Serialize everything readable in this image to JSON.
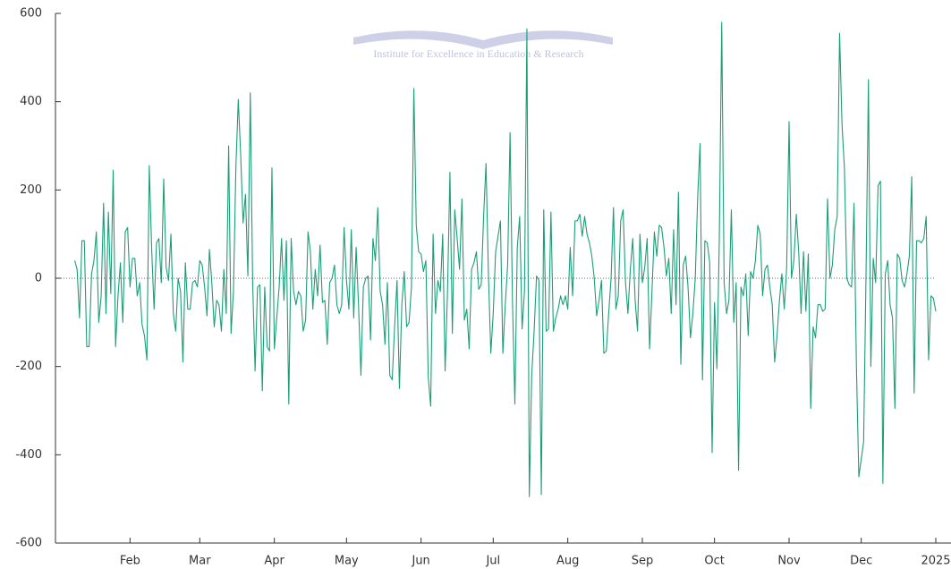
{
  "chart_data": {
    "type": "line",
    "watermark": "Institute for Excellence in Education & Research",
    "xlim": [
      0,
      366
    ],
    "xticks": [
      {
        "value": 31,
        "label": "Feb"
      },
      {
        "value": 60,
        "label": "Mar"
      },
      {
        "value": 91,
        "label": "Apr"
      },
      {
        "value": 121,
        "label": "May"
      },
      {
        "value": 152,
        "label": "Jun"
      },
      {
        "value": 182,
        "label": "Jul"
      },
      {
        "value": 213,
        "label": "Aug"
      },
      {
        "value": 244,
        "label": "Sep"
      },
      {
        "value": 274,
        "label": "Oct"
      },
      {
        "value": 305,
        "label": "Nov"
      },
      {
        "value": 335,
        "label": "Dec"
      },
      {
        "value": 366,
        "label": "2025"
      }
    ],
    "ylim": [
      -600,
      600
    ],
    "yticks": [
      -600,
      -400,
      -200,
      0,
      200,
      400,
      600
    ],
    "zeroline": true,
    "grid": false,
    "series": [
      {
        "name": null,
        "color": "#1b9e77",
        "x": [
          8,
          9,
          10,
          11,
          12,
          13,
          14,
          15,
          16,
          17,
          18,
          19,
          20,
          21,
          22,
          23,
          24,
          25,
          26,
          27,
          28,
          29,
          30,
          31,
          32,
          33,
          34,
          35,
          36,
          37,
          38,
          39,
          40,
          41,
          42,
          43,
          44,
          45,
          46,
          47,
          48,
          49,
          50,
          51,
          52,
          53,
          54,
          55,
          56,
          57,
          58,
          59,
          60,
          61,
          62,
          63,
          64,
          65,
          66,
          67,
          68,
          69,
          70,
          71,
          72,
          73,
          74,
          75,
          76,
          77,
          78,
          79,
          80,
          81,
          82,
          83,
          84,
          85,
          86,
          87,
          88,
          89,
          90,
          91,
          92,
          93,
          94,
          95,
          96,
          97,
          98,
          99,
          100,
          101,
          102,
          103,
          104,
          105,
          106,
          107,
          108,
          109,
          110,
          111,
          112,
          113,
          114,
          115,
          116,
          117,
          118,
          119,
          120,
          121,
          122,
          123,
          124,
          125,
          126,
          127,
          128,
          129,
          130,
          131,
          132,
          133,
          134,
          135,
          136,
          137,
          138,
          139,
          140,
          141,
          142,
          143,
          144,
          145,
          146,
          147,
          148,
          149,
          150,
          151,
          152,
          153,
          154,
          155,
          156,
          157,
          158,
          159,
          160,
          161,
          162,
          163,
          164,
          165,
          166,
          167,
          168,
          169,
          170,
          171,
          172,
          173,
          174,
          175,
          176,
          177,
          178,
          179,
          180,
          181,
          182,
          183,
          184,
          185,
          186,
          187,
          188,
          189,
          190,
          191,
          192,
          193,
          194,
          195,
          196,
          197,
          198,
          199,
          200,
          201,
          202,
          203,
          204,
          205,
          206,
          207,
          208,
          209,
          210,
          211,
          212,
          213,
          214,
          215,
          216,
          217,
          218,
          219,
          220,
          221,
          222,
          223,
          224,
          225,
          226,
          227,
          228,
          229,
          230,
          231,
          232,
          233,
          234,
          235,
          236,
          237,
          238,
          239,
          240,
          241,
          242,
          243,
          244,
          245,
          246,
          247,
          248,
          249,
          250,
          251,
          252,
          253,
          254,
          255,
          256,
          257,
          258,
          259,
          260,
          261,
          262,
          263,
          264,
          265,
          266,
          267,
          268,
          269,
          270,
          271,
          272,
          273,
          274,
          275,
          276,
          277,
          278,
          279,
          280,
          281,
          282,
          283,
          284,
          285,
          286,
          287,
          288,
          289,
          290,
          291,
          292,
          293,
          294,
          295,
          296,
          297,
          298,
          299,
          300,
          301,
          302,
          303,
          304,
          305,
          306,
          307,
          308,
          309,
          310,
          311,
          312,
          313,
          314,
          315,
          316,
          317,
          318,
          319,
          320,
          321,
          322,
          323,
          324,
          325,
          326,
          327,
          328,
          329,
          330,
          331,
          332,
          333,
          334,
          335,
          336,
          337,
          338,
          339,
          340,
          341,
          342,
          343,
          344,
          345,
          346,
          347,
          348,
          349,
          350,
          351,
          352,
          353,
          354,
          355,
          356,
          357,
          358,
          359,
          360,
          361,
          362,
          363,
          364,
          365,
          366
        ],
        "values": [
          40,
          20,
          -90,
          85,
          85,
          -155,
          -155,
          10,
          40,
          105,
          -100,
          -40,
          170,
          -80,
          150,
          -35,
          245,
          -155,
          -40,
          35,
          -100,
          105,
          115,
          -20,
          45,
          45,
          -40,
          -10,
          -105,
          -130,
          -185,
          255,
          65,
          -70,
          80,
          90,
          -10,
          225,
          25,
          -5,
          100,
          -80,
          -120,
          0,
          -30,
          -190,
          35,
          -70,
          -70,
          -10,
          -5,
          -20,
          40,
          30,
          -20,
          -85,
          65,
          -10,
          -110,
          -50,
          -60,
          -120,
          20,
          -80,
          300,
          -125,
          -30,
          250,
          405,
          280,
          125,
          190,
          5,
          420,
          -15,
          -210,
          -20,
          -15,
          -255,
          -20,
          -155,
          -165,
          250,
          -160,
          -90,
          -20,
          90,
          -50,
          85,
          -285,
          90,
          -30,
          -60,
          -30,
          -40,
          -120,
          -95,
          105,
          60,
          -70,
          20,
          -40,
          75,
          -55,
          -50,
          -150,
          -10,
          0,
          30,
          -60,
          -80,
          -60,
          115,
          -5,
          -70,
          110,
          -90,
          70,
          -60,
          -220,
          -20,
          0,
          5,
          -140,
          90,
          40,
          160,
          -30,
          -60,
          -150,
          -10,
          -220,
          -230,
          -110,
          -5,
          -250,
          -60,
          15,
          -110,
          -100,
          -20,
          430,
          120,
          60,
          55,
          15,
          40,
          -225,
          -290,
          100,
          -80,
          -5,
          -30,
          100,
          -210,
          -30,
          240,
          -125,
          155,
          90,
          20,
          180,
          -95,
          -70,
          -160,
          20,
          35,
          60,
          -25,
          -15,
          140,
          260,
          10,
          -170,
          -80,
          60,
          95,
          130,
          -170,
          -60,
          30,
          330,
          -50,
          -285,
          70,
          140,
          -115,
          -30,
          565,
          -495,
          -220,
          -120,
          5,
          -5,
          -490,
          155,
          -120,
          -115,
          150,
          -120,
          -90,
          -70,
          -40,
          -60,
          -40,
          -70,
          70,
          -40,
          130,
          130,
          145,
          95,
          140,
          100,
          80,
          50,
          0,
          -85,
          -50,
          -5,
          -170,
          -165,
          -80,
          0,
          160,
          -70,
          -40,
          130,
          155,
          -10,
          -80,
          20,
          90,
          -50,
          -120,
          100,
          -10,
          25,
          90,
          -160,
          -30,
          105,
          50,
          120,
          115,
          70,
          5,
          45,
          -80,
          110,
          -60,
          195,
          -195,
          30,
          50,
          -20,
          -135,
          -80,
          0,
          185,
          305,
          -230,
          85,
          80,
          35,
          -395,
          -55,
          -205,
          90,
          580,
          -10,
          -80,
          -50,
          155,
          -100,
          -10,
          -435,
          -20,
          -40,
          10,
          -130,
          15,
          0,
          40,
          120,
          100,
          -40,
          20,
          30,
          -20,
          -60,
          -190,
          -130,
          -50,
          10,
          -70,
          25,
          355,
          0,
          40,
          145,
          60,
          -80,
          60,
          -75,
          55,
          -295,
          -110,
          -135,
          -60,
          -60,
          -75,
          -70,
          180,
          0,
          30,
          110,
          140,
          555,
          350,
          250,
          0,
          -15,
          -20,
          170,
          -200,
          -450,
          -410,
          -370,
          10,
          450,
          -200,
          45,
          -10,
          210,
          220,
          -465,
          10,
          40,
          -60,
          -90,
          -295,
          55,
          45,
          -5,
          -20,
          10,
          50,
          230,
          -260,
          85,
          85,
          80,
          90,
          140,
          -185,
          -40,
          -45,
          -75
        ]
      }
    ]
  }
}
